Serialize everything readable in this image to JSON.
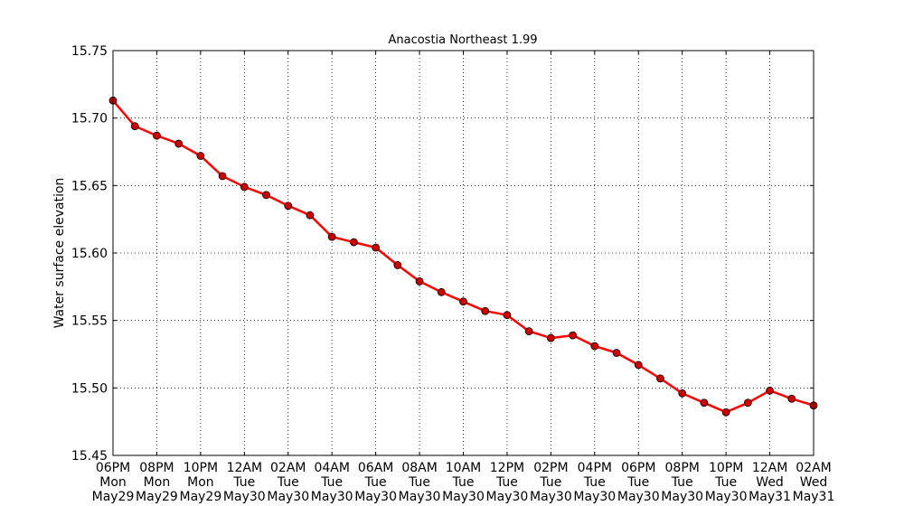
{
  "chart_data": {
    "type": "line",
    "title": "Anacostia Northeast 1.99",
    "ylabel": "Water surface elevation",
    "xlabel": "",
    "ylim": [
      15.45,
      15.75
    ],
    "yticks": [
      "15.45",
      "15.50",
      "15.55",
      "15.60",
      "15.65",
      "15.70",
      "15.75"
    ],
    "xlim_hours": [
      0,
      32
    ],
    "xticks": [
      {
        "line1": "06PM",
        "line2": "Mon",
        "line3": "May29"
      },
      {
        "line1": "08PM",
        "line2": "Mon",
        "line3": "May29"
      },
      {
        "line1": "10PM",
        "line2": "Mon",
        "line3": "May29"
      },
      {
        "line1": "12AM",
        "line2": "Tue",
        "line3": "May30"
      },
      {
        "line1": "02AM",
        "line2": "Tue",
        "line3": "May30"
      },
      {
        "line1": "04AM",
        "line2": "Tue",
        "line3": "May30"
      },
      {
        "line1": "06AM",
        "line2": "Tue",
        "line3": "May30"
      },
      {
        "line1": "08AM",
        "line2": "Tue",
        "line3": "May30"
      },
      {
        "line1": "10AM",
        "line2": "Tue",
        "line3": "May30"
      },
      {
        "line1": "12PM",
        "line2": "Tue",
        "line3": "May30"
      },
      {
        "line1": "02PM",
        "line2": "Tue",
        "line3": "May30"
      },
      {
        "line1": "04PM",
        "line2": "Tue",
        "line3": "May30"
      },
      {
        "line1": "06PM",
        "line2": "Tue",
        "line3": "May30"
      },
      {
        "line1": "08PM",
        "line2": "Tue",
        "line3": "May30"
      },
      {
        "line1": "10PM",
        "line2": "Tue",
        "line3": "May30"
      },
      {
        "line1": "12AM",
        "line2": "Wed",
        "line3": "May31"
      },
      {
        "line1": "02AM",
        "line2": "Wed",
        "line3": "May31"
      }
    ],
    "grid": true,
    "series": [
      {
        "color": "#ff0000",
        "marker_color": "#cc0000",
        "x_hours": [
          0,
          1,
          2,
          3,
          4,
          5,
          6,
          7,
          8,
          9,
          10,
          11,
          12,
          13,
          14,
          15,
          16,
          17,
          18,
          19,
          20,
          21,
          22,
          23,
          24,
          25,
          26,
          27,
          28,
          29,
          30,
          31,
          32
        ],
        "values": [
          15.713,
          15.694,
          15.687,
          15.681,
          15.672,
          15.657,
          15.649,
          15.643,
          15.635,
          15.628,
          15.612,
          15.608,
          15.604,
          15.591,
          15.579,
          15.571,
          15.564,
          15.557,
          15.554,
          15.542,
          15.537,
          15.539,
          15.531,
          15.526,
          15.517,
          15.507,
          15.496,
          15.489,
          15.482,
          15.489,
          15.498,
          15.492,
          15.487
        ]
      }
    ]
  }
}
